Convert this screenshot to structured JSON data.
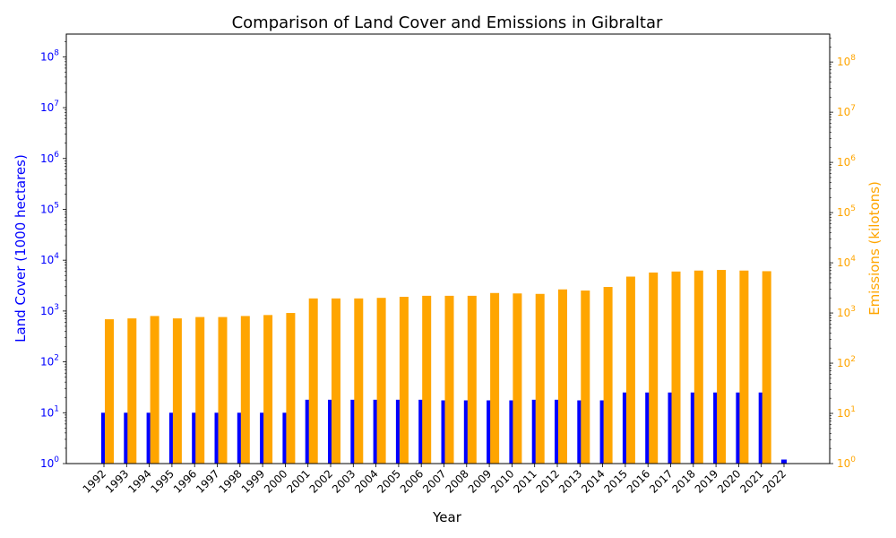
{
  "chart_data": {
    "type": "bar",
    "title": "Comparison of Land Cover and Emissions in Gibraltar",
    "xlabel": "Year",
    "ylabel_left": "Land Cover (1000 hectares)",
    "ylabel_right": "Emissions (kilotons)",
    "y_scale": "log",
    "ylim_left": [
      1,
      280000000
    ],
    "ylim_right": [
      1,
      360000000
    ],
    "left_ticks": [
      {
        "value": 1,
        "base": "10",
        "exp": "0"
      },
      {
        "value": 10,
        "base": "10",
        "exp": "1"
      },
      {
        "value": 100,
        "base": "10",
        "exp": "2"
      },
      {
        "value": 1000,
        "base": "10",
        "exp": "3"
      },
      {
        "value": 10000,
        "base": "10",
        "exp": "4"
      },
      {
        "value": 100000,
        "base": "10",
        "exp": "5"
      },
      {
        "value": 1000000,
        "base": "10",
        "exp": "6"
      },
      {
        "value": 10000000,
        "base": "10",
        "exp": "7"
      },
      {
        "value": 100000000,
        "base": "10",
        "exp": "8"
      }
    ],
    "right_ticks": [
      {
        "value": 1,
        "base": "10",
        "exp": "0"
      },
      {
        "value": 10,
        "base": "10",
        "exp": "1"
      },
      {
        "value": 100,
        "base": "10",
        "exp": "2"
      },
      {
        "value": 1000,
        "base": "10",
        "exp": "3"
      },
      {
        "value": 10000,
        "base": "10",
        "exp": "4"
      },
      {
        "value": 100000,
        "base": "10",
        "exp": "5"
      },
      {
        "value": 1000000,
        "base": "10",
        "exp": "6"
      },
      {
        "value": 10000000,
        "base": "10",
        "exp": "7"
      },
      {
        "value": 100000000,
        "base": "10",
        "exp": "8"
      }
    ],
    "categories": [
      "1992",
      "1993",
      "1994",
      "1995",
      "1996",
      "1997",
      "1998",
      "1999",
      "2000",
      "2001",
      "2002",
      "2003",
      "2004",
      "2005",
      "2006",
      "2007",
      "2008",
      "2009",
      "2010",
      "2011",
      "2012",
      "2013",
      "2014",
      "2015",
      "2016",
      "2017",
      "2018",
      "2019",
      "2020",
      "2021",
      "2022"
    ],
    "series": [
      {
        "axis": "left",
        "color": "#0000ff",
        "values": [
          10,
          10,
          10,
          10,
          10,
          10,
          10,
          10,
          10,
          18,
          18,
          18,
          18,
          18,
          18,
          17.5,
          17.5,
          17.5,
          17.5,
          18,
          18,
          17.5,
          17.5,
          25,
          25,
          25,
          25,
          25,
          25,
          25,
          1.2
        ]
      },
      {
        "axis": "right",
        "color": "#ffa500",
        "values": [
          750,
          780,
          870,
          780,
          830,
          830,
          870,
          910,
          1000,
          1950,
          1950,
          1950,
          2000,
          2100,
          2200,
          2200,
          2200,
          2500,
          2450,
          2400,
          2950,
          2800,
          3300,
          5300,
          6400,
          6700,
          7000,
          7200,
          7000,
          6800,
          null
        ]
      }
    ]
  }
}
